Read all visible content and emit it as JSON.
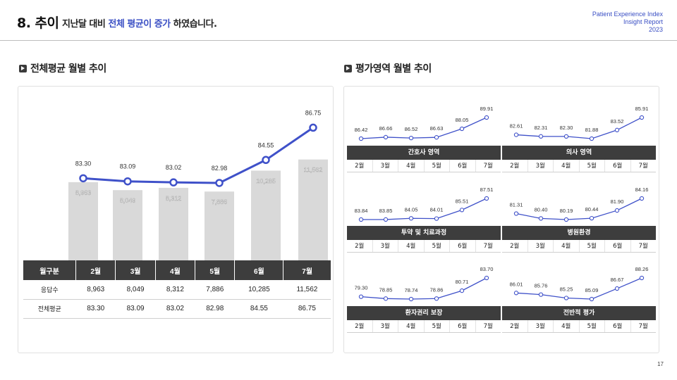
{
  "header": {
    "title_num": "8. 추이",
    "sub_pre": "지난달 대비",
    "sub_hl": "전체 평균이 증가",
    "sub_post": "하였습니다.",
    "brand_line1": "Patient Experience Index",
    "brand_line2": "Insight Report",
    "brand_line3": "2023"
  },
  "left_section": {
    "title": "전체평균 월별 추이"
  },
  "right_section": {
    "title": "평가영역 월별 추이"
  },
  "table": {
    "headers": [
      "월구분",
      "2월",
      "3월",
      "4월",
      "5월",
      "6월",
      "7월"
    ],
    "rows": [
      {
        "label": "응답수",
        "values": [
          "8,963",
          "8,049",
          "8,312",
          "7,886",
          "10,285",
          "11,562"
        ]
      },
      {
        "label": "전체평균",
        "values": [
          "83.30",
          "83.09",
          "83.02",
          "82.98",
          "84.55",
          "86.75"
        ]
      }
    ]
  },
  "chart_data": [
    {
      "type": "bar+line",
      "categories": [
        "2월",
        "3월",
        "4월",
        "5월",
        "6월",
        "7월"
      ],
      "bar_series": {
        "values": [
          8963,
          8049,
          8312,
          7886,
          10285,
          11562
        ],
        "labels": [
          "8,963",
          "8,049",
          "8,312",
          "7,886",
          "10,285",
          "11,562"
        ],
        "color": "#d9d9d9"
      },
      "line_series": {
        "values": [
          83.3,
          83.09,
          83.02,
          82.98,
          84.55,
          86.75
        ],
        "labels": [
          "83.30",
          "83.09",
          "83.02",
          "82.98",
          "84.55",
          "86.75"
        ],
        "color": "#3f51c9"
      }
    },
    {
      "type": "line",
      "title": "간호사 영역",
      "categories": [
        "2월",
        "3월",
        "4월",
        "5월",
        "6월",
        "7월"
      ],
      "values": [
        86.42,
        86.66,
        86.52,
        86.63,
        88.05,
        89.91
      ],
      "labels": [
        "86.42",
        "86.66",
        "86.52",
        "86.63",
        "88.05",
        "89.91"
      ]
    },
    {
      "type": "line",
      "title": "의사 영역",
      "categories": [
        "2월",
        "3월",
        "4월",
        "5월",
        "6월",
        "7월"
      ],
      "values": [
        82.61,
        82.31,
        82.3,
        81.88,
        83.52,
        85.91
      ],
      "labels": [
        "82.61",
        "82.31",
        "82.30",
        "81.88",
        "83.52",
        "85.91"
      ]
    },
    {
      "type": "line",
      "title": "투약 및 치료과정",
      "categories": [
        "2월",
        "3월",
        "4월",
        "5월",
        "6월",
        "7월"
      ],
      "values": [
        83.84,
        83.85,
        84.05,
        84.01,
        85.51,
        87.51
      ],
      "labels": [
        "83.84",
        "83.85",
        "84.05",
        "84.01",
        "85.51",
        "87.51"
      ]
    },
    {
      "type": "line",
      "title": "병원환경",
      "categories": [
        "2월",
        "3월",
        "4월",
        "5월",
        "6월",
        "7월"
      ],
      "values": [
        81.31,
        80.4,
        80.19,
        80.44,
        81.9,
        84.16
      ],
      "labels": [
        "81.31",
        "80.40",
        "80.19",
        "80.44",
        "81.90",
        "84.16"
      ]
    },
    {
      "type": "line",
      "title": "환자권리 보장",
      "categories": [
        "2월",
        "3월",
        "4월",
        "5월",
        "6월",
        "7월"
      ],
      "values": [
        79.3,
        78.85,
        78.74,
        78.86,
        80.71,
        83.7
      ],
      "labels": [
        "79.30",
        "78.85",
        "78.74",
        "78.86",
        "80.71",
        "83.70"
      ]
    },
    {
      "type": "line",
      "title": "전반적 평가",
      "categories": [
        "2월",
        "3월",
        "4월",
        "5월",
        "6월",
        "7월"
      ],
      "values": [
        86.01,
        85.76,
        85.25,
        85.09,
        86.67,
        88.26
      ],
      "labels": [
        "86.01",
        "85.76",
        "85.25",
        "85.09",
        "86.67",
        "88.26"
      ]
    }
  ],
  "footer": {
    "page_number": "17"
  }
}
